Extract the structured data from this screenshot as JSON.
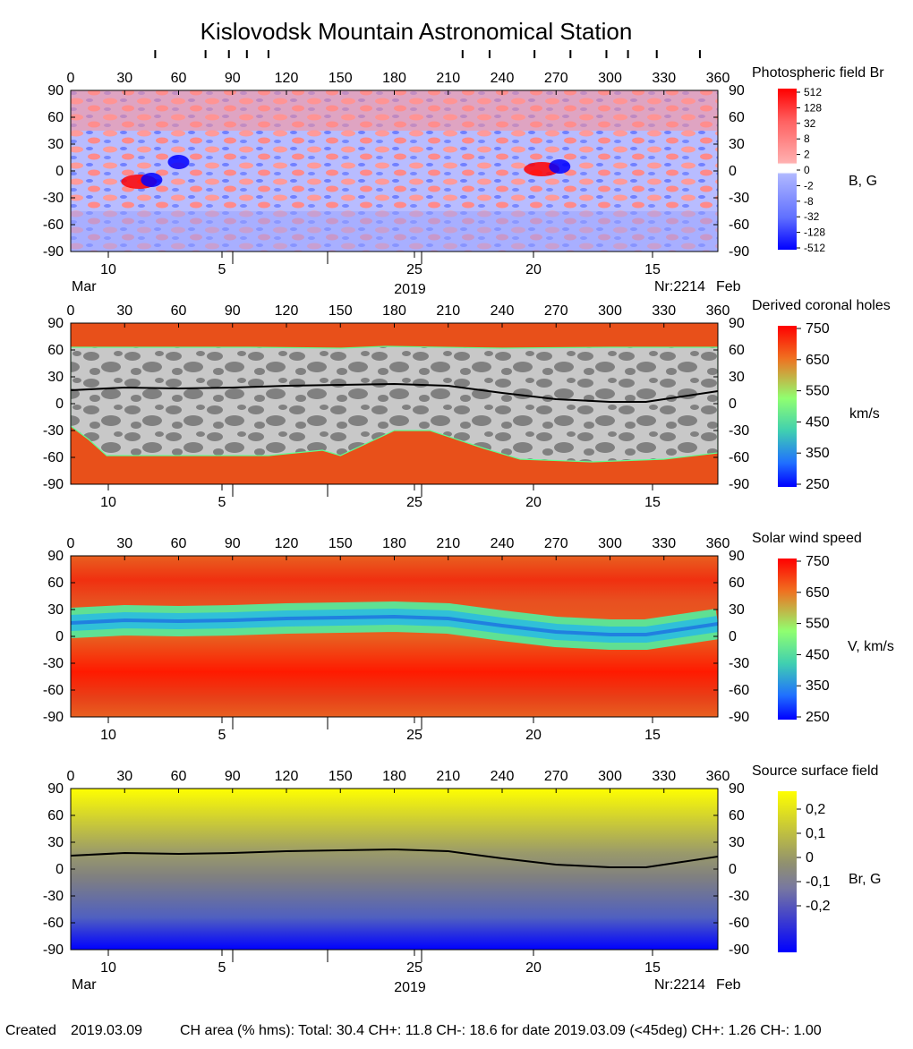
{
  "page": {
    "title": "Kislovodsk Mountain Astronomical Station",
    "footer": {
      "created_label": "Created",
      "created_date": "2019.03.09",
      "ch_area_text": "CH area (% hms): Total: 30.4 CH+: 11.8   CH-: 18.6 for date 2019.03.09 (<45deg) CH+: 1.26    CH-: 1.00"
    }
  },
  "chart_data": [
    {
      "type": "heatmap",
      "title": "Photospheric field Br",
      "colorbar_unit": "B, G",
      "colorbar_ticks": [
        "512",
        "128",
        "32",
        "8",
        "2",
        "0",
        "-2",
        "-8",
        "-32",
        "-128",
        "-512"
      ],
      "colors": {
        "positive": "#ff0000",
        "negative": "#0000ff",
        "neutral": "#ffffff"
      },
      "x_ticks": [
        "0",
        "30",
        "60",
        "90",
        "120",
        "150",
        "180",
        "210",
        "240",
        "270",
        "300",
        "330",
        "360"
      ],
      "y_ticks": [
        "90",
        "60",
        "30",
        "0",
        "-30",
        "-60",
        "-90"
      ],
      "xlim": [
        0,
        360
      ],
      "ylim": [
        -90,
        90
      ],
      "date_labels": [
        "10",
        "5",
        "25",
        "20",
        "15"
      ],
      "left_month": "Mar",
      "center_year": "2019",
      "rotation": "Nr:2214",
      "right_month": "Feb",
      "top_markers_lon": [
        47,
        75,
        88,
        98,
        110,
        218,
        233,
        258,
        278,
        298,
        310,
        326,
        350
      ],
      "features": [
        {
          "polarity": "positive",
          "lon": 262,
          "lat": 2
        },
        {
          "polarity": "negative",
          "lon": 272,
          "lat": 5
        },
        {
          "polarity": "positive",
          "lon": 38,
          "lat": -12
        },
        {
          "polarity": "negative",
          "lon": 45,
          "lat": -10
        },
        {
          "polarity": "negative",
          "lon": 60,
          "lat": 10
        }
      ]
    },
    {
      "type": "heatmap",
      "title": "Derived coronal holes",
      "colorbar_unit": "km/s",
      "colorbar_ticks": [
        "750",
        "650",
        "550",
        "450",
        "350",
        "250"
      ],
      "x_ticks": [
        "0",
        "30",
        "60",
        "90",
        "120",
        "150",
        "180",
        "210",
        "240",
        "270",
        "300",
        "330",
        "360"
      ],
      "y_ticks": [
        "90",
        "60",
        "30",
        "0",
        "-30",
        "-60",
        "-90"
      ],
      "xlim": [
        0,
        360
      ],
      "ylim": [
        -90,
        90
      ],
      "date_labels": [
        "10",
        "5",
        "25",
        "20",
        "15"
      ],
      "north_hole_boundary": [
        [
          0,
          63
        ],
        [
          40,
          63
        ],
        [
          100,
          63
        ],
        [
          150,
          62
        ],
        [
          175,
          64
        ],
        [
          240,
          62
        ],
        [
          300,
          63
        ],
        [
          360,
          63
        ]
      ],
      "south_hole_boundary": [
        [
          0,
          -25
        ],
        [
          10,
          -40
        ],
        [
          20,
          -58
        ],
        [
          70,
          -58
        ],
        [
          110,
          -58
        ],
        [
          140,
          -52
        ],
        [
          150,
          -58
        ],
        [
          180,
          -30
        ],
        [
          200,
          -30
        ],
        [
          230,
          -50
        ],
        [
          250,
          -62
        ],
        [
          290,
          -65
        ],
        [
          330,
          -62
        ],
        [
          360,
          -55
        ]
      ],
      "neutral_line": [
        [
          0,
          15
        ],
        [
          30,
          18
        ],
        [
          60,
          17
        ],
        [
          90,
          18
        ],
        [
          120,
          20
        ],
        [
          150,
          21
        ],
        [
          180,
          22
        ],
        [
          210,
          20
        ],
        [
          240,
          12
        ],
        [
          270,
          5
        ],
        [
          300,
          2
        ],
        [
          320,
          2
        ],
        [
          340,
          8
        ],
        [
          360,
          14
        ]
      ]
    },
    {
      "type": "heatmap",
      "title": "Solar wind speed",
      "colorbar_unit": "V, km/s",
      "colorbar_ticks": [
        "750",
        "650",
        "550",
        "450",
        "350",
        "250"
      ],
      "x_ticks": [
        "0",
        "30",
        "60",
        "90",
        "120",
        "150",
        "180",
        "210",
        "240",
        "270",
        "300",
        "330",
        "360"
      ],
      "y_ticks": [
        "90",
        "60",
        "30",
        "0",
        "-30",
        "-60",
        "-90"
      ],
      "xlim": [
        0,
        360
      ],
      "ylim": [
        -90,
        90
      ],
      "date_labels": [
        "10",
        "5",
        "25",
        "20",
        "15"
      ],
      "slow_band_center": [
        [
          0,
          15
        ],
        [
          30,
          18
        ],
        [
          60,
          17
        ],
        [
          90,
          18
        ],
        [
          120,
          20
        ],
        [
          150,
          21
        ],
        [
          180,
          22
        ],
        [
          210,
          20
        ],
        [
          240,
          12
        ],
        [
          270,
          5
        ],
        [
          300,
          2
        ],
        [
          320,
          2
        ],
        [
          340,
          8
        ],
        [
          360,
          14
        ]
      ]
    },
    {
      "type": "heatmap",
      "title": "Source surface field",
      "colorbar_unit": "Br, G",
      "colorbar_ticks": [
        "0,2",
        "0,1",
        "0",
        "-0,1",
        "-0,2"
      ],
      "colors": {
        "positive": "#ffff00",
        "neutral": "#808080",
        "negative": "#0000ff"
      },
      "x_ticks": [
        "0",
        "30",
        "60",
        "90",
        "120",
        "150",
        "180",
        "210",
        "240",
        "270",
        "300",
        "330",
        "360"
      ],
      "y_ticks": [
        "90",
        "60",
        "30",
        "0",
        "-30",
        "-60",
        "-90"
      ],
      "xlim": [
        0,
        360
      ],
      "ylim": [
        -90,
        90
      ],
      "date_labels": [
        "10",
        "5",
        "25",
        "20",
        "15"
      ],
      "left_month": "Mar",
      "center_year": "2019",
      "rotation": "Nr:2214",
      "right_month": "Feb",
      "neutral_line": [
        [
          0,
          15
        ],
        [
          30,
          18
        ],
        [
          60,
          17
        ],
        [
          90,
          18
        ],
        [
          120,
          20
        ],
        [
          150,
          21
        ],
        [
          180,
          22
        ],
        [
          210,
          20
        ],
        [
          240,
          12
        ],
        [
          270,
          5
        ],
        [
          300,
          2
        ],
        [
          320,
          2
        ],
        [
          340,
          8
        ],
        [
          360,
          14
        ]
      ]
    }
  ]
}
